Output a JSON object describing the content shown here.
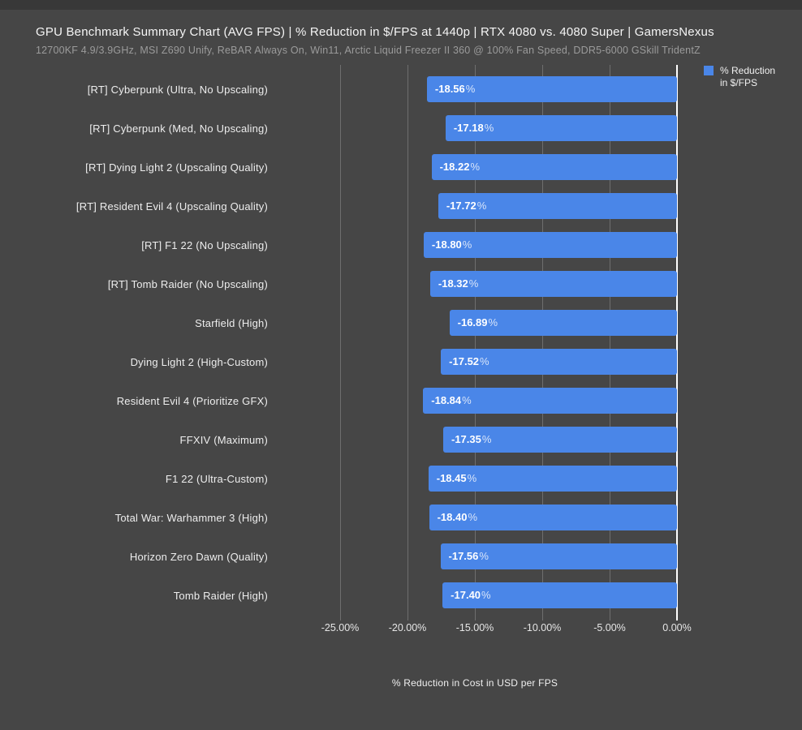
{
  "header": {
    "title": "GPU Benchmark Summary Chart (AVG FPS) | % Reduction in $/FPS at 1440p | RTX 4080 vs. 4080 Super | GamersNexus",
    "subtitle": "12700KF 4.9/3.9GHz, MSI Z690 Unify, ReBAR Always On, Win11, Arctic Liquid Freezer II 360 @ 100% Fan Speed, DDR5-6000 GSkill TridentZ"
  },
  "legend": {
    "lines": [
      "% Reduction",
      "in $/FPS"
    ]
  },
  "colors": {
    "page_background": "#464646",
    "top_strip": "#383838",
    "bar": "#4a86e8",
    "gridline": "#6e6e6e",
    "zero_axis": "#ffffff",
    "title_text": "#f5f5f5",
    "subtitle_text": "#9b9b9b",
    "category_label_text": "#ededed"
  },
  "chart_data": {
    "type": "bar",
    "orientation": "horizontal",
    "title": "GPU Benchmark Summary Chart (AVG FPS) | % Reduction in $/FPS at 1440p | RTX 4080 vs. 4080 Super | GamersNexus",
    "subtitle": "12700KF 4.9/3.9GHz, MSI Z690 Unify, ReBAR Always On, Win11, Arctic Liquid Freezer II 360 @ 100% Fan Speed, DDR5-6000 GSkill TridentZ",
    "series_name": "% Reduction in $/FPS",
    "categories": [
      "[RT] Cyberpunk (Ultra, No Upscaling)",
      "[RT] Cyberpunk (Med, No Upscaling)",
      "[RT] Dying Light 2 (Upscaling Quality)",
      "[RT] Resident Evil 4 (Upscaling Quality)",
      "[RT] F1 22 (No Upscaling)",
      "[RT] Tomb Raider (No Upscaling)",
      "Starfield (High)",
      "Dying Light 2 (High-Custom)",
      "Resident Evil 4 (Prioritize GFX)",
      "FFXIV (Maximum)",
      "F1 22 (Ultra-Custom)",
      "Total War: Warhammer 3 (High)",
      "Horizon Zero Dawn (Quality)",
      "Tomb Raider (High)"
    ],
    "values": [
      -18.56,
      -17.18,
      -18.22,
      -17.72,
      -18.8,
      -18.32,
      -16.89,
      -17.52,
      -18.84,
      -17.35,
      -18.45,
      -18.4,
      -17.56,
      -17.4
    ],
    "value_label_suffix": "%",
    "xlabel": "% Reduction in Cost in USD per FPS",
    "xlim": [
      -30,
      0
    ],
    "xticks": [
      -25,
      -20,
      -15,
      -10,
      -5,
      0
    ],
    "xtick_labels": [
      "-25.00%",
      "-20.00%",
      "-15.00%",
      "-10.00%",
      "-5.00%",
      "0.00%"
    ],
    "grid": "vertical",
    "legend_position": "top-right"
  }
}
